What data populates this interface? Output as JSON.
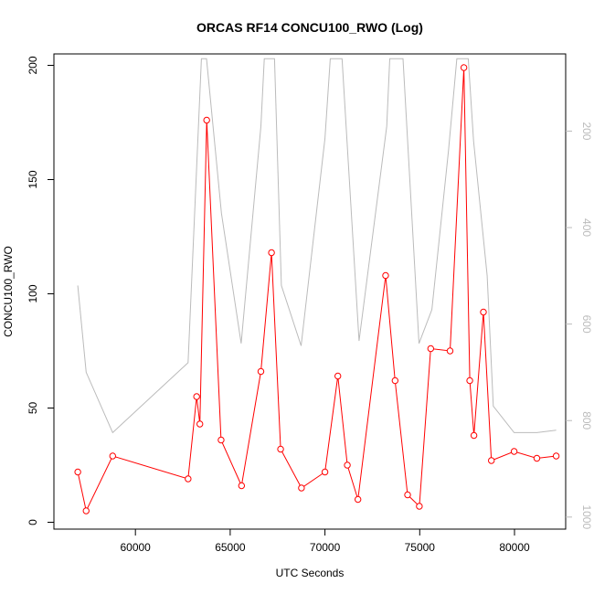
{
  "chart_data": {
    "type": "line",
    "title": "ORCAS RF14 CONCU100_RWO (Log)",
    "xlabel": "UTC Seconds",
    "ylabel": "CONCU100_RWO",
    "xlim": [
      55700,
      82700
    ],
    "ylim": [
      -3,
      205
    ],
    "xticks": [
      60000,
      65000,
      70000,
      75000,
      80000
    ],
    "yticks": [
      0,
      50,
      100,
      150,
      200
    ],
    "grid": false,
    "legend": "none",
    "series": [
      {
        "color": "#ff0000",
        "marker": "open-circle",
        "x": [
          56960,
          57400,
          58800,
          62780,
          63230,
          63400,
          63760,
          64520,
          65600,
          66620,
          67180,
          67660,
          68760,
          70000,
          70680,
          71180,
          71740,
          73200,
          73700,
          74360,
          74980,
          75580,
          76600,
          77330,
          77640,
          77860,
          78360,
          78780,
          79980,
          81180,
          82200
        ],
        "y": [
          22,
          5,
          29,
          19,
          55,
          43,
          176,
          36,
          16,
          66,
          118,
          32,
          15,
          22,
          64,
          25,
          10,
          108,
          62,
          12,
          7,
          76,
          75,
          199,
          62,
          38,
          92,
          27,
          31,
          28,
          29
        ]
      },
      {
        "color": "#bbbbbb",
        "axis": "secondary",
        "x": [
          56960,
          57400,
          58800,
          62780,
          63480,
          63750,
          64540,
          65580,
          66620,
          66800,
          67340,
          67700,
          68740,
          70000,
          70280,
          70900,
          71800,
          73260,
          73420,
          74120,
          74960,
          75640,
          76520,
          76960,
          77560,
          77840,
          78560,
          78880,
          79980,
          81180,
          82200
        ],
        "y": [
          520,
          700,
          825,
          680,
          50,
          50,
          370,
          640,
          190,
          50,
          50,
          520,
          645,
          215,
          50,
          50,
          635,
          190,
          50,
          50,
          640,
          570,
          240,
          50,
          50,
          220,
          500,
          770,
          825,
          825,
          820
        ]
      }
    ],
    "secondary_axis": {
      "ticks": [
        200,
        400,
        600,
        800,
        1000
      ],
      "range": [
        40,
        1025
      ],
      "reversed": true
    }
  }
}
